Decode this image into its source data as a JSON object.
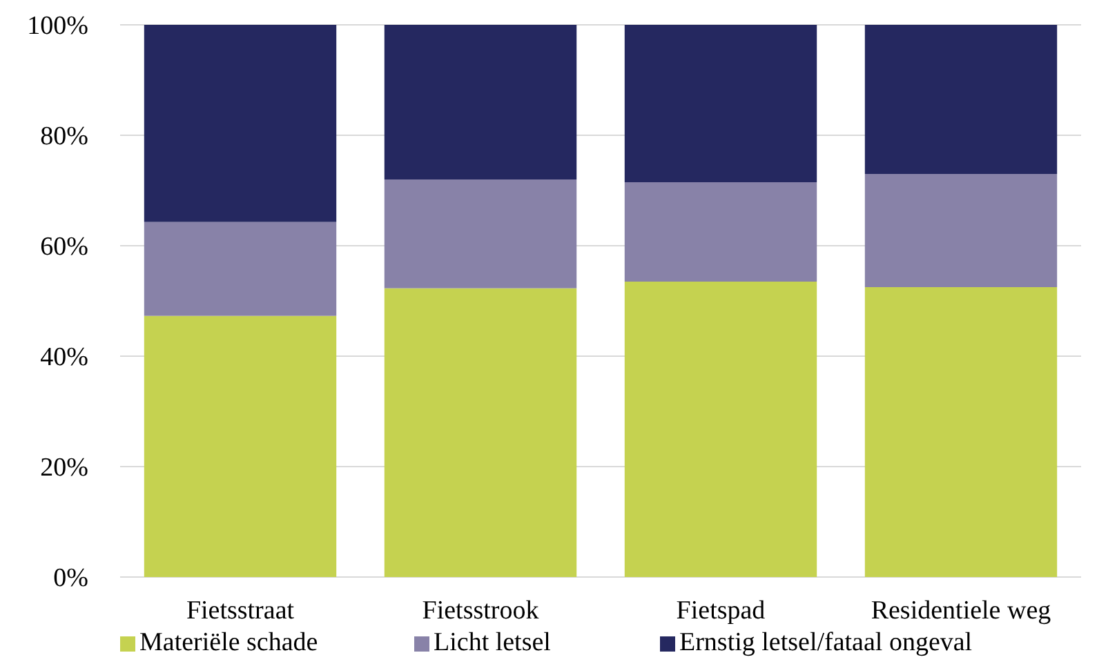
{
  "chart_data": {
    "type": "bar",
    "stacked": true,
    "categories": [
      "Fietsstraat",
      "Fietsstrook",
      "Fietspad",
      "Residentiele weg"
    ],
    "series": [
      {
        "name": "Materiële schade",
        "color": "#c5d250",
        "values": [
          47.3,
          52.3,
          53.5,
          52.5
        ]
      },
      {
        "name": "Licht letsel",
        "color": "#8882a8",
        "values": [
          17,
          19.7,
          18,
          20.5
        ]
      },
      {
        "name": "Ernstig letsel/fataal ongeval",
        "color": "#252860",
        "values": [
          35.7,
          28,
          28.5,
          27
        ]
      }
    ],
    "ylim": [
      0,
      100
    ],
    "yticks": [
      {
        "value": 0,
        "label": "0%"
      },
      {
        "value": 20,
        "label": "20%"
      },
      {
        "value": 40,
        "label": "40%"
      },
      {
        "value": 60,
        "label": "60%"
      },
      {
        "value": 80,
        "label": "80%"
      },
      {
        "value": 100,
        "label": "100%"
      }
    ],
    "grid": "y",
    "legend": "bottom"
  }
}
